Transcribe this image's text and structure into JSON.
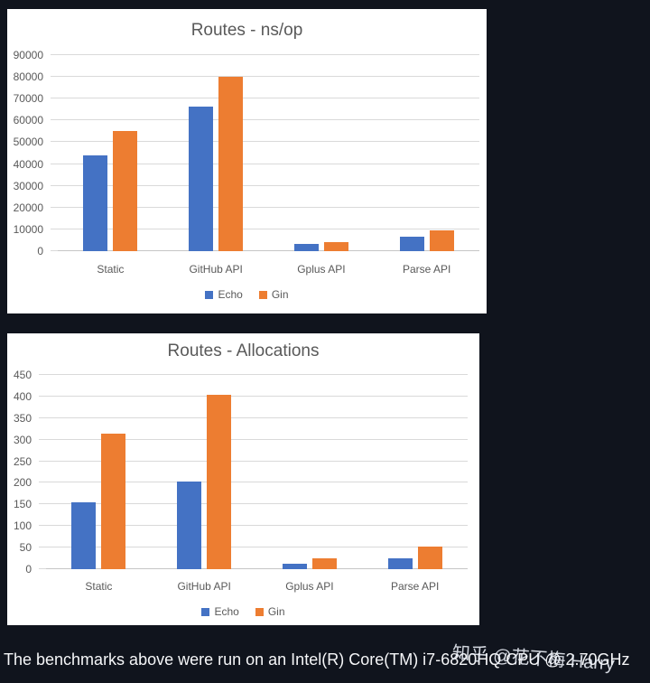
{
  "page": {
    "background": "#10141d",
    "panel_background": "#ffffff"
  },
  "colors": {
    "echo_blue": "#4472C4",
    "gin_orange": "#ED7D31",
    "title_text": "#595959",
    "axis_text": "#595959",
    "gridline": "#d9d9d9",
    "caption_text": "#f5f6f8"
  },
  "footer": {
    "caption": "The benchmarks above were run on an Intel(R) Core(TM) i7-6820HQ CPU @ 2.70GHz",
    "watermark": "知乎 @花不梅 Harry"
  },
  "chart_data": [
    {
      "type": "bar",
      "title": "Routes - ns/op",
      "categories": [
        "Static",
        "GitHub API",
        "Gplus API",
        "Parse API"
      ],
      "series": [
        {
          "name": "Echo",
          "color": "#4472C4",
          "values": [
            44000,
            66200,
            3300,
            6500
          ]
        },
        {
          "name": "Gin",
          "color": "#ED7D31",
          "values": [
            55000,
            80000,
            4300,
            9700
          ]
        }
      ],
      "xlabel": "",
      "ylabel": "",
      "ylim": [
        0,
        90000
      ],
      "yticks": [
        0,
        10000,
        20000,
        30000,
        40000,
        50000,
        60000,
        70000,
        80000,
        90000
      ],
      "grid": true,
      "legend_position": "bottom"
    },
    {
      "type": "bar",
      "title": "Routes - Allocations",
      "categories": [
        "Static",
        "GitHub API",
        "Gplus API",
        "Parse API"
      ],
      "series": [
        {
          "name": "Echo",
          "color": "#4472C4",
          "values": [
            155,
            203,
            13,
            25
          ]
        },
        {
          "name": "Gin",
          "color": "#ED7D31",
          "values": [
            315,
            405,
            25,
            52
          ]
        }
      ],
      "xlabel": "",
      "ylabel": "",
      "ylim": [
        0,
        450
      ],
      "yticks": [
        0,
        50,
        100,
        150,
        200,
        250,
        300,
        350,
        400,
        450
      ],
      "grid": true,
      "legend_position": "bottom"
    }
  ]
}
